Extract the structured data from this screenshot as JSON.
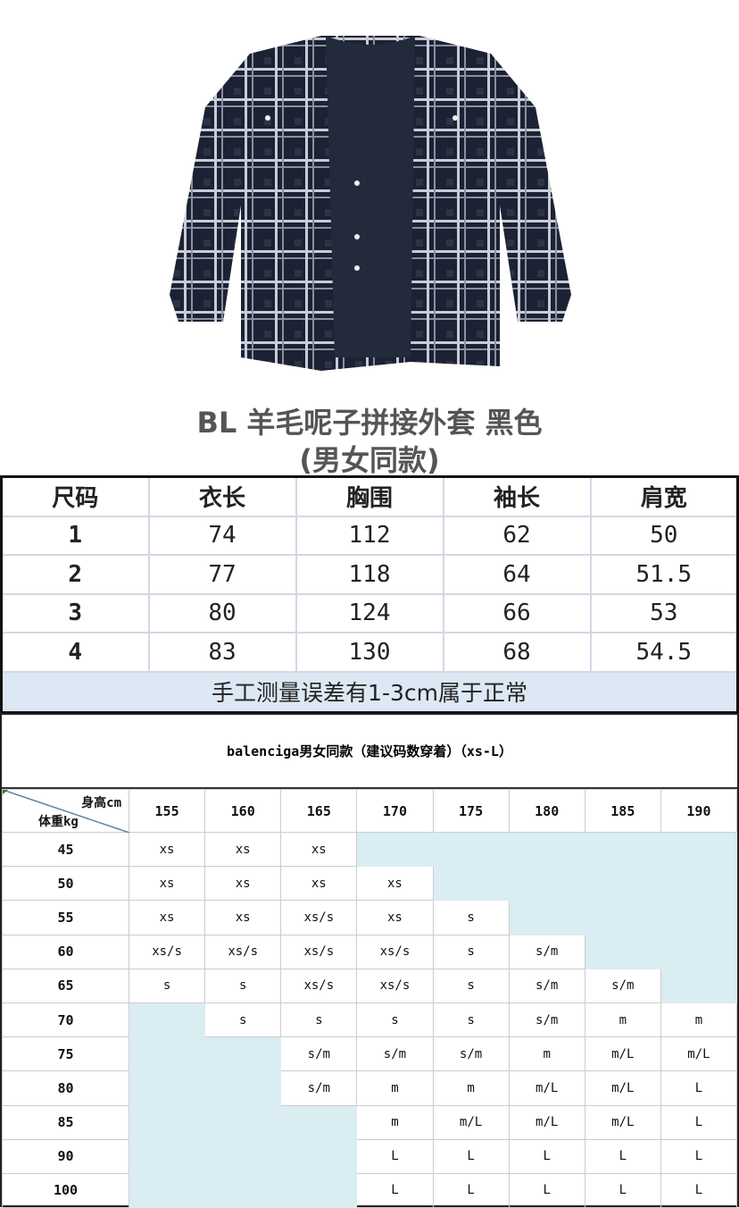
{
  "product": {
    "title_line1": "BL  羊毛呢子拼接外套  黑色",
    "title_line2": "(男女同款)",
    "image": "plaid-shirt-with-navy-tee-photo"
  },
  "measurements": {
    "headers": [
      "尺码",
      "衣长",
      "胸围",
      "袖长",
      "肩宽"
    ],
    "rows": [
      [
        "1",
        "74",
        "112",
        "62",
        "50"
      ],
      [
        "2",
        "77",
        "118",
        "64",
        "51.5"
      ],
      [
        "3",
        "80",
        "124",
        "66",
        "53"
      ],
      [
        "4",
        "83",
        "130",
        "68",
        "54.5"
      ]
    ],
    "note": "手工测量误差有1-3cm属于正常"
  },
  "size_guide": {
    "title": "balenciga男女同款（建议码数穿着）（xs-L）",
    "corner_height_label": "身高cm",
    "corner_weight_label": "体重kg",
    "heights": [
      "155",
      "160",
      "165",
      "170",
      "175",
      "180",
      "185",
      "190"
    ],
    "rows": [
      {
        "weight": "45",
        "sizes": [
          "xs",
          "xs",
          "xs",
          "",
          "",
          "",
          "",
          ""
        ]
      },
      {
        "weight": "50",
        "sizes": [
          "xs",
          "xs",
          "xs",
          "xs",
          "",
          "",
          "",
          ""
        ]
      },
      {
        "weight": "55",
        "sizes": [
          "xs",
          "xs",
          "xs/s",
          "xs",
          "s",
          "",
          "",
          ""
        ]
      },
      {
        "weight": "60",
        "sizes": [
          "xs/s",
          "xs/s",
          "xs/s",
          "xs/s",
          "s",
          "s/m",
          "",
          ""
        ]
      },
      {
        "weight": "65",
        "sizes": [
          "s",
          "s",
          "xs/s",
          "xs/s",
          "s",
          "s/m",
          "s/m",
          ""
        ]
      },
      {
        "weight": "70",
        "sizes": [
          "",
          "s",
          "s",
          "s",
          "s",
          "s/m",
          "m",
          "m"
        ]
      },
      {
        "weight": "75",
        "sizes": [
          "",
          "",
          "s/m",
          "s/m",
          "s/m",
          "m",
          "m/L",
          "m/L"
        ]
      },
      {
        "weight": "80",
        "sizes": [
          "",
          "",
          "s/m",
          "m",
          "m",
          "m/L",
          "m/L",
          "L"
        ]
      },
      {
        "weight": "85",
        "sizes": [
          "",
          "",
          "",
          "m",
          "m/L",
          "m/L",
          "m/L",
          "L"
        ]
      },
      {
        "weight": "90",
        "sizes": [
          "",
          "",
          "",
          "L",
          "L",
          "L",
          "L",
          "L"
        ]
      },
      {
        "weight": "100",
        "sizes": [
          "",
          "",
          "",
          "L",
          "L",
          "L",
          "L",
          "L"
        ]
      }
    ],
    "empty_cell_color": "#daedf3"
  }
}
